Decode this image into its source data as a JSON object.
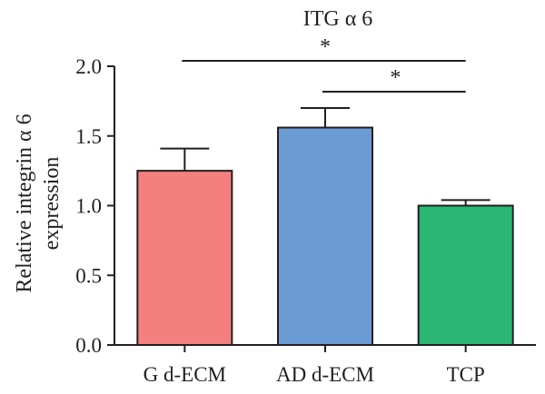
{
  "chart_data": {
    "type": "bar",
    "title": "ITG α 6",
    "ylabel_line1": "Relative integrin α 6",
    "ylabel_line2": "expression",
    "categories": [
      "G d-ECM",
      "AD d-ECM",
      "TCP"
    ],
    "values": [
      1.25,
      1.56,
      1.0
    ],
    "errors": [
      0.16,
      0.14,
      0.04
    ],
    "colors": [
      "#f47f7f",
      "#6b9bd2",
      "#2bb673"
    ],
    "ylim": [
      0,
      2.0
    ],
    "yticks": [
      "0.0",
      "0.5",
      "1.0",
      "1.5",
      "2.0"
    ],
    "significance": [
      {
        "from": "G d-ECM",
        "to": "TCP",
        "label": "*"
      },
      {
        "from": "AD d-ECM",
        "to": "TCP",
        "label": "*"
      }
    ]
  }
}
